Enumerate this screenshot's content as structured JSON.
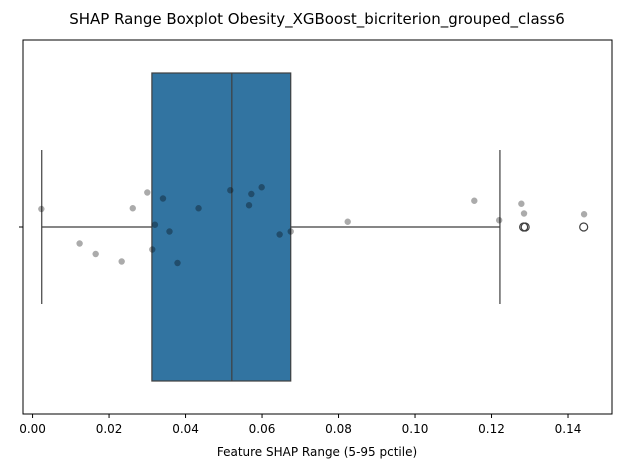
{
  "chart_data": {
    "type": "boxplot",
    "title": "SHAP Range Boxplot Obesity_XGBoost_bicriterion_grouped_class6",
    "xlabel": "Feature SHAP Range (5-95 pctile)",
    "ylabel": "",
    "xlim": [
      -0.0025,
      0.1515
    ],
    "xticks": [
      0.0,
      0.02,
      0.04,
      0.06,
      0.08,
      0.1,
      0.12,
      0.14
    ],
    "xtick_labels": [
      "0.00",
      "0.02",
      "0.04",
      "0.06",
      "0.08",
      "0.10",
      "0.12",
      "0.14"
    ],
    "grid": false,
    "box_color": "#3274a1",
    "box": {
      "whisker_low": 0.0024,
      "q1": 0.0312,
      "median": 0.0521,
      "q3": 0.0675,
      "whisker_high": 0.1222
    },
    "outliers": [
      0.1284,
      0.1288,
      0.1441
    ],
    "points": [
      {
        "x": 0.0023,
        "dy": 0.24
      },
      {
        "x": 0.0123,
        "dy": -0.22
      },
      {
        "x": 0.0165,
        "dy": -0.36
      },
      {
        "x": 0.0233,
        "dy": -0.46
      },
      {
        "x": 0.0262,
        "dy": 0.25
      },
      {
        "x": 0.03,
        "dy": 0.46
      },
      {
        "x": 0.0313,
        "dy": -0.3
      },
      {
        "x": 0.032,
        "dy": 0.03
      },
      {
        "x": 0.0341,
        "dy": 0.38
      },
      {
        "x": 0.0358,
        "dy": -0.06
      },
      {
        "x": 0.0379,
        "dy": -0.48
      },
      {
        "x": 0.0434,
        "dy": 0.25
      },
      {
        "x": 0.0517,
        "dy": 0.49
      },
      {
        "x": 0.0566,
        "dy": 0.29
      },
      {
        "x": 0.0572,
        "dy": 0.44
      },
      {
        "x": 0.0599,
        "dy": 0.53
      },
      {
        "x": 0.0646,
        "dy": -0.1
      },
      {
        "x": 0.0675,
        "dy": -0.06
      },
      {
        "x": 0.0824,
        "dy": 0.07
      },
      {
        "x": 0.1155,
        "dy": 0.35
      },
      {
        "x": 0.122,
        "dy": 0.09
      },
      {
        "x": 0.1278,
        "dy": 0.31
      },
      {
        "x": 0.1285,
        "dy": 0.18
      },
      {
        "x": 0.1442,
        "dy": 0.17
      }
    ]
  }
}
